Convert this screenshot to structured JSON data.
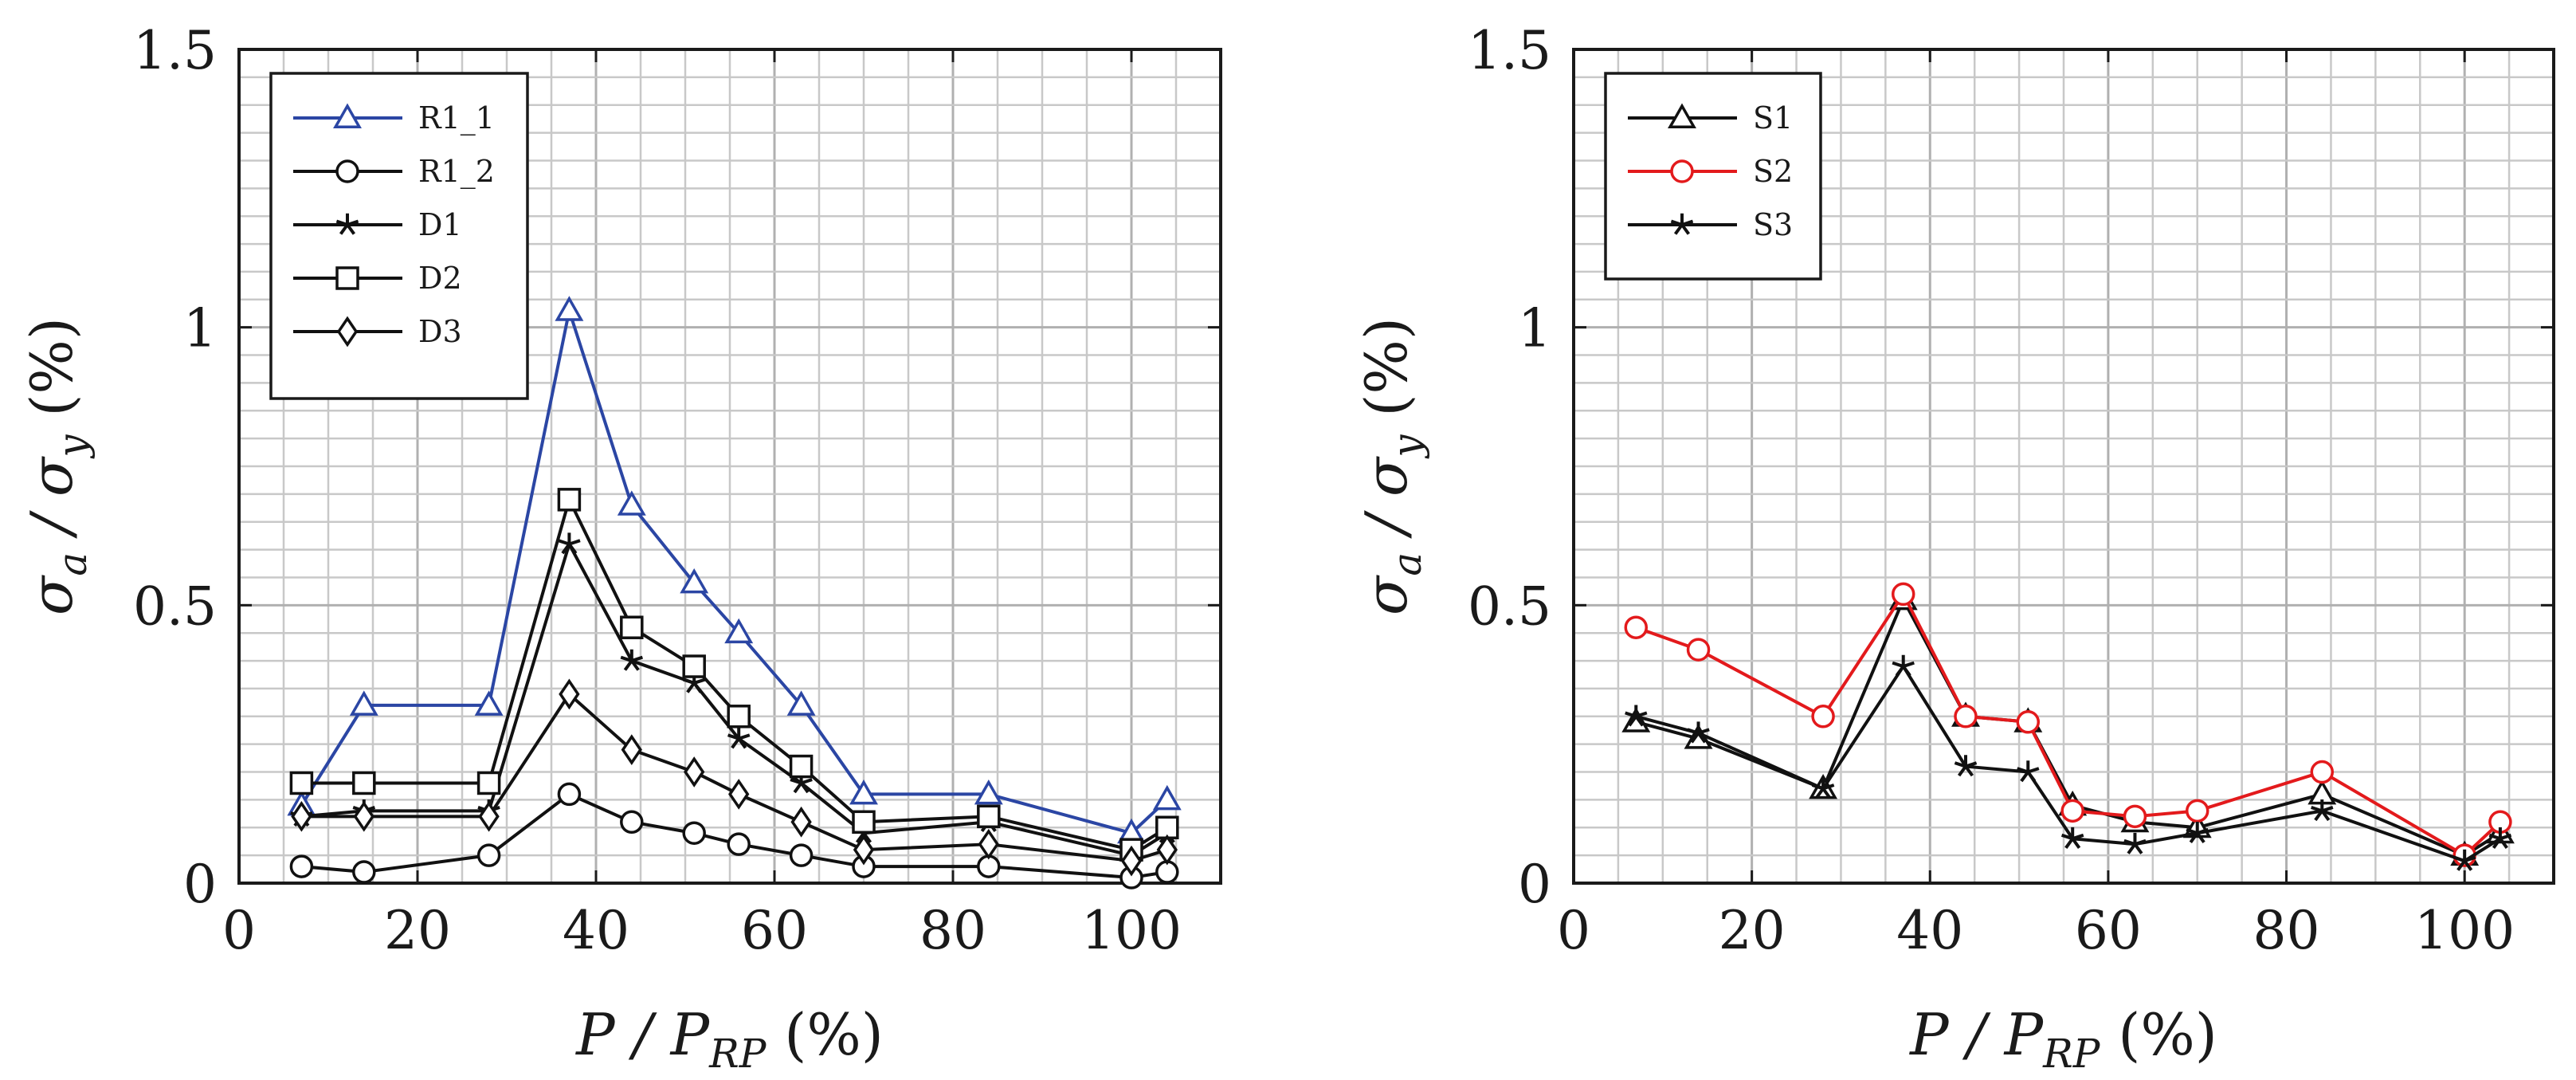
{
  "chart_data": [
    {
      "type": "line",
      "xlabel": "P / P_RP (%)",
      "ylabel": "σ_a / σ_y (%)",
      "xlim": [
        0,
        110
      ],
      "ylim": [
        0,
        1.5
      ],
      "grid": true,
      "legend_position": "top-left",
      "x_ticks": [
        0,
        20,
        40,
        60,
        80,
        100
      ],
      "x_tick_labels": [
        "0",
        "20",
        "40",
        "60",
        "80",
        "100"
      ],
      "y_ticks": [
        0,
        0.5,
        1,
        1.5
      ],
      "y_tick_labels": [
        "0",
        "0.5",
        "1",
        "1.5"
      ],
      "series": [
        {
          "name": "R1_1",
          "color": "#2b46a4",
          "marker": "triangle",
          "x": [
            7,
            14,
            28,
            37,
            44,
            51,
            56,
            63,
            70,
            84,
            100,
            104
          ],
          "y": [
            0.14,
            0.32,
            0.32,
            1.03,
            0.68,
            0.54,
            0.45,
            0.32,
            0.16,
            0.16,
            0.09,
            0.15
          ]
        },
        {
          "name": "R1_2",
          "color": "#111111",
          "marker": "circle",
          "x": [
            7,
            14,
            28,
            37,
            44,
            51,
            56,
            63,
            70,
            84,
            100,
            104
          ],
          "y": [
            0.03,
            0.02,
            0.05,
            0.16,
            0.11,
            0.09,
            0.07,
            0.05,
            0.03,
            0.03,
            0.01,
            0.02
          ]
        },
        {
          "name": "D1",
          "color": "#111111",
          "marker": "star",
          "x": [
            7,
            14,
            28,
            37,
            44,
            51,
            56,
            63,
            70,
            84,
            100,
            104
          ],
          "y": [
            0.12,
            0.13,
            0.13,
            0.61,
            0.4,
            0.36,
            0.26,
            0.18,
            0.09,
            0.11,
            0.05,
            0.09
          ]
        },
        {
          "name": "D2",
          "color": "#111111",
          "marker": "square",
          "x": [
            7,
            14,
            28,
            37,
            44,
            51,
            56,
            63,
            70,
            84,
            100,
            104
          ],
          "y": [
            0.18,
            0.18,
            0.18,
            0.69,
            0.46,
            0.39,
            0.3,
            0.21,
            0.11,
            0.12,
            0.06,
            0.1
          ]
        },
        {
          "name": "D3",
          "color": "#111111",
          "marker": "diamond",
          "x": [
            7,
            14,
            28,
            37,
            44,
            51,
            56,
            63,
            70,
            84,
            100,
            104
          ],
          "y": [
            0.12,
            0.12,
            0.12,
            0.34,
            0.24,
            0.2,
            0.16,
            0.11,
            0.06,
            0.07,
            0.04,
            0.06
          ]
        }
      ]
    },
    {
      "type": "line",
      "xlabel": "P / P_RP (%)",
      "ylabel": "σ_a / σ_y (%)",
      "xlim": [
        0,
        110
      ],
      "ylim": [
        0,
        1.5
      ],
      "grid": true,
      "legend_position": "top-left",
      "x_ticks": [
        0,
        20,
        40,
        60,
        80,
        100
      ],
      "x_tick_labels": [
        "0",
        "20",
        "40",
        "60",
        "80",
        "100"
      ],
      "y_ticks": [
        0,
        0.5,
        1,
        1.5
      ],
      "y_tick_labels": [
        "0",
        "0.5",
        "1",
        "1.5"
      ],
      "series": [
        {
          "name": "S1",
          "color": "#111111",
          "marker": "triangle",
          "x": [
            7,
            14,
            28,
            37,
            44,
            51,
            56,
            63,
            70,
            84,
            100,
            104
          ],
          "y": [
            0.29,
            0.26,
            0.17,
            0.51,
            0.3,
            0.29,
            0.14,
            0.11,
            0.1,
            0.16,
            0.05,
            0.09
          ]
        },
        {
          "name": "S2",
          "color": "#e31a1c",
          "marker": "circle",
          "x": [
            7,
            14,
            28,
            37,
            44,
            51,
            56,
            63,
            70,
            84,
            100,
            104
          ],
          "y": [
            0.46,
            0.42,
            0.3,
            0.52,
            0.3,
            0.29,
            0.13,
            0.12,
            0.13,
            0.2,
            0.05,
            0.11
          ]
        },
        {
          "name": "S3",
          "color": "#111111",
          "marker": "star",
          "x": [
            7,
            14,
            28,
            37,
            44,
            51,
            56,
            63,
            70,
            84,
            100,
            104
          ],
          "y": [
            0.3,
            0.27,
            0.17,
            0.39,
            0.21,
            0.2,
            0.08,
            0.07,
            0.09,
            0.13,
            0.04,
            0.08
          ]
        }
      ]
    }
  ]
}
